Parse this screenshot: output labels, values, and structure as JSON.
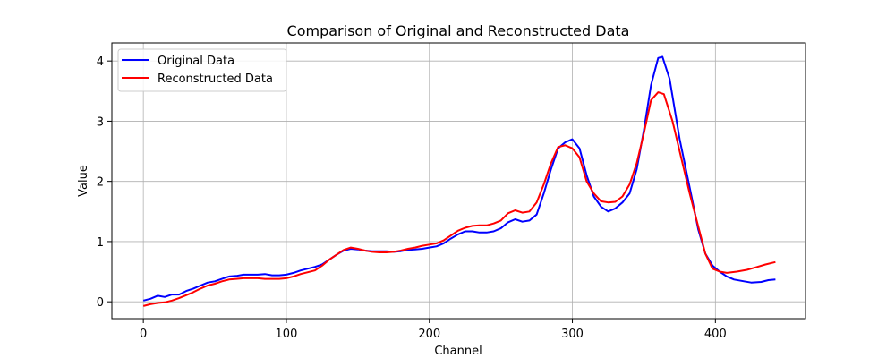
{
  "chart_data": {
    "type": "line",
    "title": "Comparison of Original and Reconstructed Data",
    "xlabel": "Channel",
    "ylabel": "Value",
    "xlim": [
      -22,
      463
    ],
    "ylim": [
      -0.28,
      4.3
    ],
    "xticks": [
      0,
      100,
      200,
      300,
      400
    ],
    "yticks": [
      0,
      1,
      2,
      3,
      4
    ],
    "grid": true,
    "legend_position": "top-left",
    "series": [
      {
        "name": "Original Data",
        "color": "#0000ff",
        "points": [
          [
            0,
            0.02
          ],
          [
            5,
            0.05
          ],
          [
            10,
            0.1
          ],
          [
            15,
            0.08
          ],
          [
            20,
            0.12
          ],
          [
            25,
            0.12
          ],
          [
            30,
            0.18
          ],
          [
            35,
            0.22
          ],
          [
            40,
            0.27
          ],
          [
            45,
            0.32
          ],
          [
            50,
            0.34
          ],
          [
            55,
            0.38
          ],
          [
            60,
            0.42
          ],
          [
            65,
            0.43
          ],
          [
            70,
            0.45
          ],
          [
            75,
            0.45
          ],
          [
            80,
            0.45
          ],
          [
            85,
            0.46
          ],
          [
            90,
            0.44
          ],
          [
            95,
            0.44
          ],
          [
            100,
            0.45
          ],
          [
            105,
            0.48
          ],
          [
            110,
            0.52
          ],
          [
            115,
            0.55
          ],
          [
            120,
            0.58
          ],
          [
            125,
            0.62
          ],
          [
            130,
            0.7
          ],
          [
            135,
            0.78
          ],
          [
            140,
            0.85
          ],
          [
            145,
            0.88
          ],
          [
            150,
            0.87
          ],
          [
            155,
            0.85
          ],
          [
            160,
            0.84
          ],
          [
            165,
            0.84
          ],
          [
            170,
            0.84
          ],
          [
            175,
            0.83
          ],
          [
            180,
            0.84
          ],
          [
            185,
            0.86
          ],
          [
            190,
            0.87
          ],
          [
            195,
            0.88
          ],
          [
            200,
            0.9
          ],
          [
            205,
            0.92
          ],
          [
            210,
            0.97
          ],
          [
            215,
            1.05
          ],
          [
            220,
            1.12
          ],
          [
            225,
            1.17
          ],
          [
            230,
            1.17
          ],
          [
            235,
            1.15
          ],
          [
            240,
            1.15
          ],
          [
            245,
            1.17
          ],
          [
            250,
            1.22
          ],
          [
            255,
            1.32
          ],
          [
            260,
            1.37
          ],
          [
            265,
            1.33
          ],
          [
            270,
            1.35
          ],
          [
            275,
            1.45
          ],
          [
            280,
            1.8
          ],
          [
            285,
            2.2
          ],
          [
            290,
            2.55
          ],
          [
            295,
            2.65
          ],
          [
            300,
            2.7
          ],
          [
            305,
            2.55
          ],
          [
            310,
            2.1
          ],
          [
            315,
            1.75
          ],
          [
            320,
            1.58
          ],
          [
            325,
            1.5
          ],
          [
            330,
            1.55
          ],
          [
            335,
            1.65
          ],
          [
            340,
            1.8
          ],
          [
            345,
            2.2
          ],
          [
            350,
            2.85
          ],
          [
            355,
            3.6
          ],
          [
            360,
            4.05
          ],
          [
            363,
            4.07
          ],
          [
            368,
            3.7
          ],
          [
            375,
            2.7
          ],
          [
            382,
            1.9
          ],
          [
            388,
            1.2
          ],
          [
            393,
            0.8
          ],
          [
            398,
            0.6
          ],
          [
            403,
            0.5
          ],
          [
            408,
            0.42
          ],
          [
            413,
            0.37
          ],
          [
            420,
            0.34
          ],
          [
            425,
            0.32
          ],
          [
            432,
            0.33
          ],
          [
            437,
            0.36
          ],
          [
            442,
            0.37
          ]
        ]
      },
      {
        "name": "Reconstructed Data",
        "color": "#ff0000",
        "points": [
          [
            0,
            -0.07
          ],
          [
            5,
            -0.04
          ],
          [
            10,
            -0.02
          ],
          [
            15,
            -0.01
          ],
          [
            20,
            0.02
          ],
          [
            25,
            0.06
          ],
          [
            30,
            0.11
          ],
          [
            35,
            0.16
          ],
          [
            40,
            0.22
          ],
          [
            45,
            0.27
          ],
          [
            50,
            0.3
          ],
          [
            55,
            0.34
          ],
          [
            60,
            0.37
          ],
          [
            65,
            0.38
          ],
          [
            70,
            0.39
          ],
          [
            75,
            0.39
          ],
          [
            80,
            0.39
          ],
          [
            85,
            0.38
          ],
          [
            90,
            0.38
          ],
          [
            95,
            0.38
          ],
          [
            100,
            0.39
          ],
          [
            105,
            0.42
          ],
          [
            110,
            0.46
          ],
          [
            115,
            0.49
          ],
          [
            120,
            0.52
          ],
          [
            125,
            0.6
          ],
          [
            130,
            0.7
          ],
          [
            135,
            0.78
          ],
          [
            140,
            0.86
          ],
          [
            145,
            0.9
          ],
          [
            150,
            0.88
          ],
          [
            155,
            0.85
          ],
          [
            160,
            0.83
          ],
          [
            165,
            0.82
          ],
          [
            170,
            0.82
          ],
          [
            175,
            0.83
          ],
          [
            180,
            0.85
          ],
          [
            185,
            0.88
          ],
          [
            190,
            0.9
          ],
          [
            195,
            0.93
          ],
          [
            200,
            0.95
          ],
          [
            205,
            0.97
          ],
          [
            210,
            1.02
          ],
          [
            215,
            1.1
          ],
          [
            220,
            1.18
          ],
          [
            225,
            1.23
          ],
          [
            230,
            1.26
          ],
          [
            235,
            1.27
          ],
          [
            240,
            1.27
          ],
          [
            245,
            1.3
          ],
          [
            250,
            1.35
          ],
          [
            255,
            1.47
          ],
          [
            260,
            1.52
          ],
          [
            265,
            1.48
          ],
          [
            270,
            1.5
          ],
          [
            275,
            1.65
          ],
          [
            280,
            1.95
          ],
          [
            285,
            2.3
          ],
          [
            290,
            2.57
          ],
          [
            295,
            2.6
          ],
          [
            300,
            2.55
          ],
          [
            305,
            2.4
          ],
          [
            310,
            2.0
          ],
          [
            315,
            1.8
          ],
          [
            320,
            1.67
          ],
          [
            325,
            1.65
          ],
          [
            330,
            1.66
          ],
          [
            335,
            1.75
          ],
          [
            340,
            1.95
          ],
          [
            345,
            2.3
          ],
          [
            350,
            2.8
          ],
          [
            355,
            3.35
          ],
          [
            360,
            3.48
          ],
          [
            364,
            3.45
          ],
          [
            370,
            3.0
          ],
          [
            376,
            2.4
          ],
          [
            382,
            1.8
          ],
          [
            388,
            1.25
          ],
          [
            393,
            0.8
          ],
          [
            398,
            0.55
          ],
          [
            403,
            0.5
          ],
          [
            408,
            0.48
          ],
          [
            415,
            0.5
          ],
          [
            422,
            0.53
          ],
          [
            428,
            0.57
          ],
          [
            435,
            0.62
          ],
          [
            442,
            0.66
          ]
        ]
      }
    ]
  }
}
